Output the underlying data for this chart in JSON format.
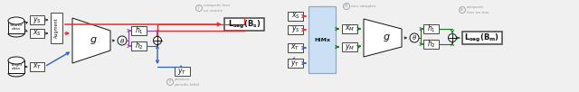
{
  "figsize": [
    6.4,
    1.02
  ],
  "dpi": 100,
  "bg_color": "#f0f0f0",
  "colors": {
    "red": "#e03030",
    "blue": "#3060d0",
    "purple": "#9040b0",
    "green": "#1a7a1a",
    "gray": "#999999",
    "black": "#111111",
    "himx_fill": "#cce0f5",
    "himx_edge": "#88aacc",
    "box_fill": "#ffffff",
    "box_edge": "#444444",
    "lseg_fill": "#ffffff",
    "lseg_edge": "#333333",
    "white": "#ffffff"
  },
  "annotations": {
    "i_circle": "i",
    "i_text": [
      "compute loss",
      "on source"
    ],
    "ii_circle": "ii",
    "ii_text": [
      "produce",
      "pseudo-label"
    ],
    "iii_circle": "iii",
    "iii_text": "mix samples",
    "iv_circle": "iv",
    "iv_text": [
      "compute",
      "loss on mix"
    ]
  }
}
